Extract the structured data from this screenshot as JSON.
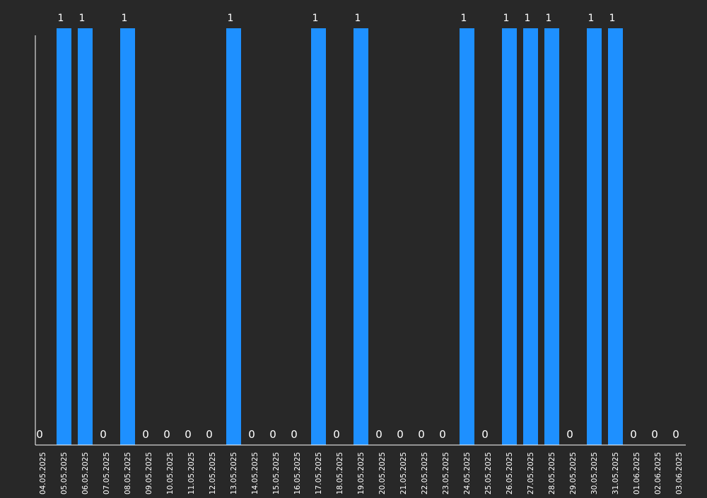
{
  "chart_data": {
    "type": "bar",
    "title": "",
    "xlabel": "",
    "ylabel": "",
    "categories": [
      "04.05.2025",
      "05.05.2025",
      "06.05.2025",
      "07.05.2025",
      "08.05.2025",
      "09.05.2025",
      "10.05.2025",
      "11.05.2025",
      "12.05.2025",
      "13.05.2025",
      "14.05.2025",
      "15.05.2025",
      "16.05.2025",
      "17.05.2025",
      "18.05.2025",
      "19.05.2025",
      "20.05.2025",
      "21.05.2025",
      "22.05.2025",
      "23.05.2025",
      "24.05.2025",
      "25.05.2025",
      "26.05.2025",
      "27.05.2025",
      "28.05.2025",
      "29.05.2025",
      "30.05.2025",
      "31.05.2025",
      "01.06.2025",
      "02.06.2025",
      "03.06.2025"
    ],
    "values": [
      0,
      1,
      1,
      0,
      1,
      0,
      0,
      0,
      0,
      1,
      0,
      0,
      0,
      1,
      0,
      1,
      0,
      0,
      0,
      0,
      1,
      0,
      1,
      1,
      1,
      0,
      1,
      1,
      0,
      0,
      0
    ],
    "ylim": [
      0,
      1
    ],
    "grid": false,
    "legend": "none",
    "data_labels": true,
    "colors": {
      "background": "#282828",
      "bar": "#1e90ff",
      "axis": "#ffffff",
      "text": "#ffffff"
    }
  }
}
